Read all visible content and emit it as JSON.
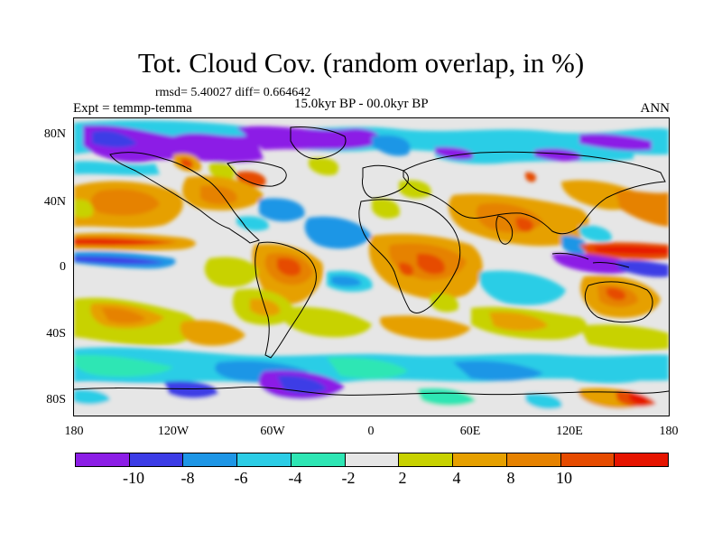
{
  "title": "Tot. Cloud Cov. (random overlap, in %)",
  "stats": "rmsd= 5.40027 diff= 0.664642",
  "period": "15.0kyr BP - 00.0kyr BP",
  "experiment": "Expt = temmp-temma",
  "season": "ANN",
  "lat_labels": [
    "80N",
    "40N",
    "0",
    "40S",
    "80S"
  ],
  "lon_labels": [
    "180",
    "120W",
    "60W",
    "0",
    "60E",
    "120E",
    "180"
  ],
  "colorbar": {
    "levels": [
      "-10",
      "-8",
      "-6",
      "-4",
      "-2",
      "2",
      "4",
      "8",
      "10"
    ],
    "colors": [
      "#8c1ee6",
      "#3c3ce6",
      "#1e96e6",
      "#2ccde6",
      "#2ee6b4",
      "#e6e6e6",
      "#c8d200",
      "#e6a000",
      "#e68200",
      "#e64b00",
      "#e61400"
    ]
  }
}
